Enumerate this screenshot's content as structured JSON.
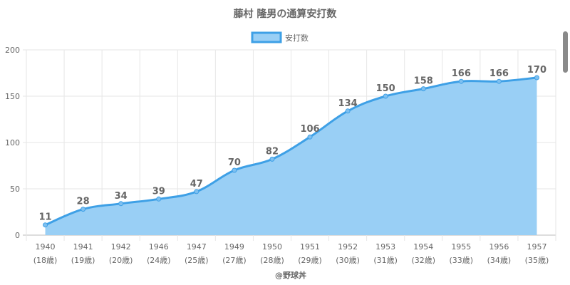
{
  "chart_data": {
    "type": "area",
    "title": "藤村 隆男の通算安打数",
    "legend": {
      "label": "安打数",
      "position": "top"
    },
    "categories": [
      "1940",
      "1941",
      "1942",
      "1946",
      "1947",
      "1949",
      "1950",
      "1951",
      "1952",
      "1953",
      "1954",
      "1955",
      "1956",
      "1957"
    ],
    "sublabels": [
      "(18歳)",
      "(19歳)",
      "(20歳)",
      "(24歳)",
      "(25歳)",
      "(27歳)",
      "(28歳)",
      "(29歳)",
      "(30歳)",
      "(31歳)",
      "(32歳)",
      "(33歳)",
      "(34歳)",
      "(35歳)"
    ],
    "series": [
      {
        "name": "安打数",
        "values": [
          11,
          28,
          34,
          39,
          47,
          70,
          82,
          106,
          134,
          150,
          158,
          166,
          166,
          170
        ]
      }
    ],
    "ylim": [
      0,
      200
    ],
    "yticks": [
      0,
      50,
      100,
      150,
      200
    ],
    "grid": true,
    "xlabel": "@野球丼",
    "ylabel": "",
    "colors": {
      "line": "#3ea0e6",
      "fill": "#99cff5",
      "grid": "#e6e6e6",
      "text": "#666666"
    }
  }
}
